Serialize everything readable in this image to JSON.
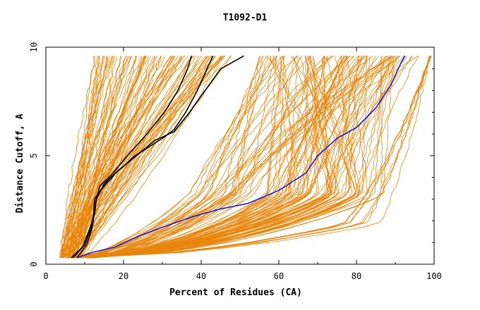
{
  "chart_data": {
    "type": "line",
    "title": "T1092-D1",
    "xlabel": "Percent of Residues (CA)",
    "ylabel": "Distance Cutoff, A",
    "xlim": [
      0,
      100
    ],
    "ylim": [
      0,
      10
    ],
    "x_ticks": [
      0,
      20,
      40,
      60,
      80,
      100
    ],
    "y_ticks": [
      0,
      5,
      10
    ],
    "grid": false,
    "colors": {
      "bundle": "#e8860c",
      "highlight_black": "#000000",
      "highlight_blue": "#1a1ae0"
    },
    "series": [
      {
        "values": [
          [
            8.0,
            0.3
          ],
          [
            10.5,
            0.9
          ],
          [
            11.8,
            1.6
          ],
          [
            12.6,
            2.4
          ],
          [
            13.0,
            3.0
          ],
          [
            13.9,
            3.6
          ],
          [
            16.8,
            4.1
          ],
          [
            21.0,
            5.0
          ],
          [
            26.0,
            6.0
          ],
          [
            30.5,
            7.0
          ],
          [
            34.0,
            8.0
          ],
          [
            36.5,
            9.0
          ],
          [
            37.5,
            9.6
          ]
        ],
        "color": "#000000"
      },
      {
        "values": [
          [
            7.0,
            0.3
          ],
          [
            10.0,
            0.9
          ],
          [
            11.5,
            1.6
          ],
          [
            12.3,
            2.2
          ],
          [
            12.5,
            3.0
          ],
          [
            14.5,
            3.5
          ],
          [
            18.0,
            4.2
          ],
          [
            23.0,
            5.0
          ],
          [
            30.0,
            5.8
          ],
          [
            33.0,
            6.2
          ],
          [
            36.0,
            7.0
          ],
          [
            39.0,
            8.0
          ],
          [
            41.5,
            9.0
          ],
          [
            43.0,
            9.6
          ]
        ],
        "color": "#000000"
      },
      {
        "values": [
          [
            6.5,
            0.3
          ],
          [
            9.5,
            0.8
          ],
          [
            11.0,
            1.5
          ],
          [
            12.0,
            2.0
          ],
          [
            13.0,
            3.0
          ],
          [
            15.0,
            3.7
          ],
          [
            18.5,
            4.3
          ],
          [
            24.0,
            5.1
          ],
          [
            28.0,
            5.7
          ],
          [
            33.0,
            6.1
          ],
          [
            37.0,
            7.0
          ],
          [
            41.0,
            8.0
          ],
          [
            45.0,
            9.0
          ],
          [
            51.0,
            9.6
          ]
        ],
        "color": "#000000"
      },
      {
        "values": [
          [
            8.0,
            0.3
          ],
          [
            12.0,
            0.55
          ],
          [
            18.0,
            0.8
          ],
          [
            24.0,
            1.3
          ],
          [
            30.0,
            1.7
          ],
          [
            38.0,
            2.2
          ],
          [
            45.0,
            2.55
          ],
          [
            52.0,
            2.8
          ],
          [
            60.0,
            3.4
          ],
          [
            67.0,
            4.2
          ],
          [
            70.0,
            5.0
          ],
          [
            75.0,
            5.8
          ],
          [
            80.0,
            6.3
          ],
          [
            85.0,
            7.2
          ],
          [
            89.0,
            8.3
          ],
          [
            91.5,
            9.3
          ],
          [
            92.5,
            9.6
          ]
        ],
        "color": "#1a1ae0"
      }
    ]
  }
}
